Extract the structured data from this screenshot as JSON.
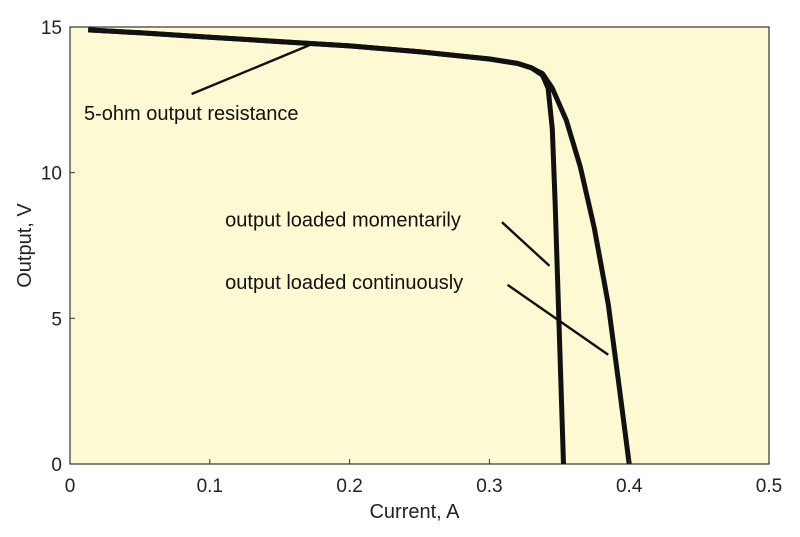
{
  "chart_data": {
    "type": "line",
    "title": "",
    "xlabel": "Current, A",
    "ylabel": "Output, V",
    "xlim": [
      0,
      0.5
    ],
    "ylim": [
      0,
      15
    ],
    "xticks": [
      0,
      0.1,
      0.2,
      0.3,
      0.4,
      0.5
    ],
    "xtick_labels": [
      "0",
      "0.1",
      "0.2",
      "0.3",
      "0.4",
      "0.5"
    ],
    "yticks": [
      0,
      5,
      10,
      15
    ],
    "ytick_labels": [
      "0",
      "5",
      "10",
      "15"
    ],
    "grid": false,
    "background_color": "#fdf9d2",
    "line_color": "#111111",
    "series": [
      {
        "x": [
          0.013,
          0.05,
          0.1,
          0.15,
          0.2,
          0.25,
          0.3,
          0.32,
          0.33,
          0.338,
          0.342,
          0.345,
          0.347,
          0.349,
          0.351,
          0.353
        ],
        "y": [
          14.9,
          14.8,
          14.65,
          14.5,
          14.35,
          14.15,
          13.9,
          13.75,
          13.6,
          13.35,
          12.9,
          11.5,
          9.0,
          6.0,
          3.0,
          0
        ]
      },
      {
        "x": [
          0.013,
          0.05,
          0.1,
          0.15,
          0.2,
          0.25,
          0.3,
          0.32,
          0.33,
          0.338,
          0.345,
          0.355,
          0.365,
          0.375,
          0.385,
          0.393,
          0.4
        ],
        "y": [
          14.9,
          14.8,
          14.65,
          14.5,
          14.35,
          14.15,
          13.9,
          13.75,
          13.6,
          13.4,
          12.9,
          11.8,
          10.2,
          8.1,
          5.5,
          2.6,
          0
        ]
      }
    ],
    "annotations": [
      {
        "text": "5-ohm output resistance",
        "x": 0.01,
        "y": 11.8,
        "arrow_from": [
          0.087,
          12.7
        ],
        "arrow_to": [
          0.175,
          14.45
        ]
      },
      {
        "text": "output loaded momentarily",
        "x": 0.111,
        "y": 8.15,
        "arrow_from": [
          0.309,
          8.3
        ],
        "arrow_to": [
          0.343,
          6.8
        ]
      },
      {
        "text": "output loaded continuously",
        "x": 0.111,
        "y": 6.0,
        "arrow_from": [
          0.313,
          6.15
        ],
        "arrow_to": [
          0.385,
          3.75
        ]
      }
    ]
  }
}
